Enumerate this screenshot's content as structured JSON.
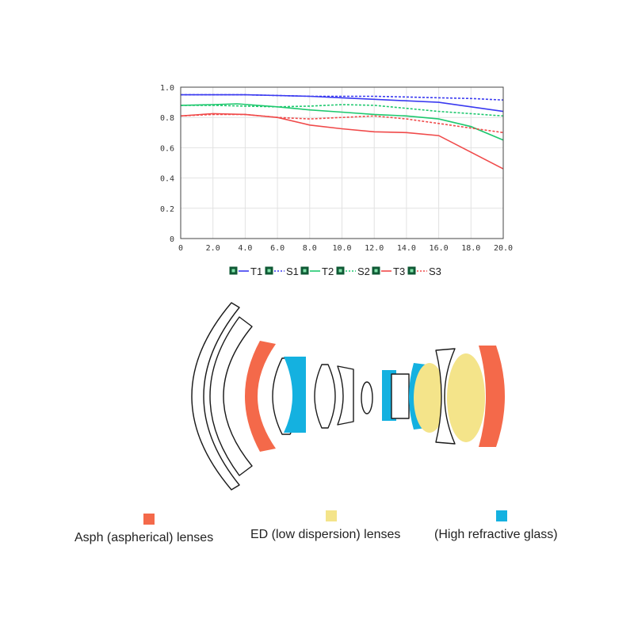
{
  "chart_data": {
    "type": "line",
    "xlim": [
      0,
      20
    ],
    "ylim": [
      0,
      1
    ],
    "x_ticks": [
      "0",
      "2.0",
      "4.0",
      "6.0",
      "8.0",
      "10.0",
      "12.0",
      "14.0",
      "16.0",
      "18.0",
      "20.0"
    ],
    "y_ticks": [
      "0",
      "0.2",
      "0.4",
      "0.6",
      "0.8",
      "1.0"
    ],
    "grid": true,
    "legend_position": "bottom",
    "series": [
      {
        "name": "T1",
        "color": "#3a3af0",
        "dash": "solid",
        "x": [
          0,
          2,
          4,
          6,
          8,
          10,
          12,
          14,
          16,
          18,
          20
        ],
        "y": [
          0.95,
          0.95,
          0.95,
          0.945,
          0.94,
          0.93,
          0.92,
          0.91,
          0.9,
          0.87,
          0.84
        ]
      },
      {
        "name": "S1",
        "color": "#3a3af0",
        "dash": "dashed",
        "x": [
          0,
          2,
          4,
          6,
          8,
          10,
          12,
          14,
          16,
          18,
          20
        ],
        "y": [
          0.95,
          0.95,
          0.95,
          0.945,
          0.94,
          0.94,
          0.94,
          0.935,
          0.93,
          0.925,
          0.915
        ]
      },
      {
        "name": "T2",
        "color": "#1ec86e",
        "dash": "solid",
        "x": [
          0,
          2,
          3.5,
          6,
          8,
          10,
          12,
          14,
          16,
          18,
          20
        ],
        "y": [
          0.88,
          0.885,
          0.89,
          0.87,
          0.85,
          0.835,
          0.82,
          0.81,
          0.79,
          0.74,
          0.65
        ]
      },
      {
        "name": "S2",
        "color": "#1ec86e",
        "dash": "dashed",
        "x": [
          0,
          2,
          4,
          6,
          8,
          10,
          12,
          14,
          16,
          18,
          20
        ],
        "y": [
          0.88,
          0.88,
          0.875,
          0.87,
          0.875,
          0.885,
          0.88,
          0.86,
          0.84,
          0.825,
          0.81
        ]
      },
      {
        "name": "T3",
        "color": "#f04a4a",
        "dash": "solid",
        "x": [
          0,
          2,
          4,
          6,
          8,
          10,
          12,
          14,
          16,
          18,
          20
        ],
        "y": [
          0.81,
          0.825,
          0.82,
          0.8,
          0.75,
          0.725,
          0.705,
          0.7,
          0.68,
          0.57,
          0.46
        ]
      },
      {
        "name": "S3",
        "color": "#f04a4a",
        "dash": "dashed",
        "x": [
          0,
          2,
          4,
          6,
          8,
          10,
          12,
          14,
          16,
          18,
          20
        ],
        "y": [
          0.81,
          0.82,
          0.82,
          0.8,
          0.79,
          0.8,
          0.81,
          0.79,
          0.76,
          0.73,
          0.7
        ]
      }
    ]
  },
  "colors": {
    "asph": "#f4694a",
    "ed": "#f4e48a",
    "high_refractive": "#14b1e0"
  },
  "lens_legend": [
    {
      "label": "Asph (aspherical) lenses",
      "color": "#f4694a"
    },
    {
      "label": "ED (low dispersion) lenses",
      "color": "#f4e48a"
    },
    {
      "label": "(High refractive glass)",
      "color": "#14b1e0"
    }
  ]
}
